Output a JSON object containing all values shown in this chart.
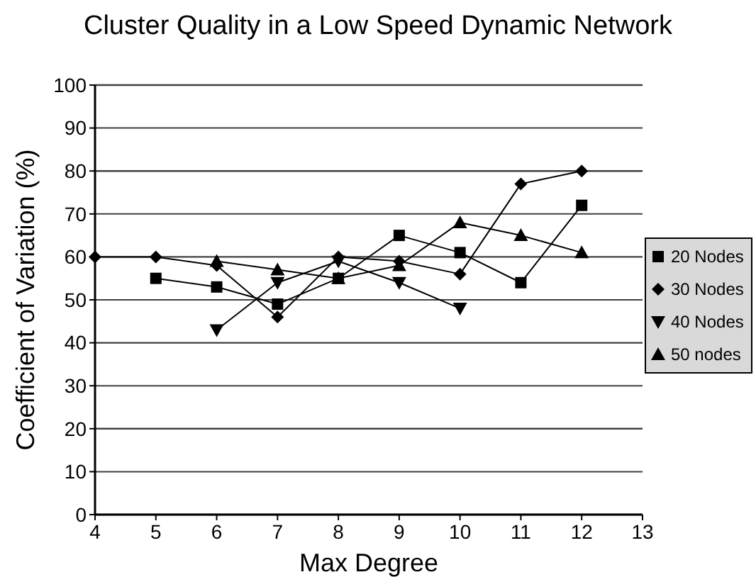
{
  "chart_data": {
    "type": "line",
    "title": "Cluster Quality in a Low Speed Dynamic Network",
    "xlabel": "Max Degree",
    "ylabel": "Coefficient of Variation (%)",
    "xlim": [
      4,
      13
    ],
    "xticks": [
      4,
      5,
      6,
      7,
      8,
      9,
      10,
      11,
      12,
      13
    ],
    "ylim": [
      0,
      100
    ],
    "yticks": [
      0,
      10,
      20,
      30,
      40,
      50,
      60,
      70,
      80,
      90,
      100
    ],
    "grid": "y",
    "legend": "right",
    "series": [
      {
        "name": "20 Nodes",
        "color": "#000000",
        "marker": "square",
        "x": [
          5,
          6,
          7,
          8,
          9,
          10,
          11,
          12
        ],
        "values": [
          55,
          53,
          49,
          55,
          65,
          61,
          54,
          72
        ]
      },
      {
        "name": "30 Nodes",
        "color": "#000000",
        "marker": "diamond",
        "x": [
          4,
          5,
          6,
          7,
          8,
          9,
          10,
          11,
          12
        ],
        "values": [
          60,
          60,
          58,
          46,
          60,
          59,
          56,
          77,
          80
        ]
      },
      {
        "name": "40 Nodes",
        "color": "#000000",
        "marker": "triangle-down",
        "x": [
          6,
          7,
          8,
          9,
          10
        ],
        "values": [
          43,
          54,
          59,
          54,
          48
        ]
      },
      {
        "name": "50 nodes",
        "color": "#000000",
        "marker": "triangle",
        "x": [
          6,
          7,
          8,
          9,
          10,
          11,
          12
        ],
        "values": [
          59,
          57,
          55,
          58,
          68,
          65,
          61
        ]
      }
    ]
  }
}
